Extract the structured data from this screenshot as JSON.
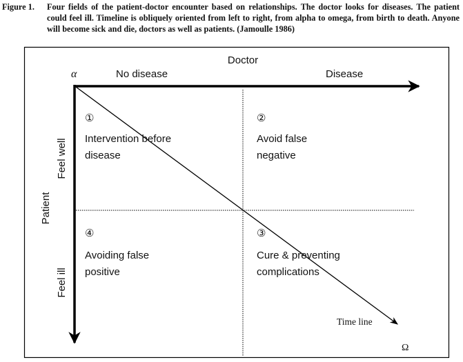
{
  "caption": {
    "label": "Figure 1.",
    "text": "Four fields of the patient-doctor encounter based on relationships. The doctor looks for diseases. The patient could feel ill. Timeline is obliquely oriented from left to right, from alpha to omega, from birth to death. Anyone will become sick and die, doctors as well as patients. (Jamoulle 1986)"
  },
  "diagram": {
    "doctor_label": "Doctor",
    "patient_label": "Patient",
    "alpha": "α",
    "omega": "Ω",
    "col_no_disease": "No disease",
    "col_disease": "Disease",
    "row_feel_well": "Feel well",
    "row_feel_ill": "Feel ill",
    "timeline_label": "Time line",
    "quadrants": [
      {
        "number": "①",
        "line1": "Intervention before",
        "line2": "disease"
      },
      {
        "number": "②",
        "line1": "Avoid false",
        "line2": "negative"
      },
      {
        "number": "③",
        "line1": "Cure & preventing",
        "line2": "complications"
      },
      {
        "number": "④",
        "line1": "Avoiding false",
        "line2": "positive"
      }
    ]
  }
}
